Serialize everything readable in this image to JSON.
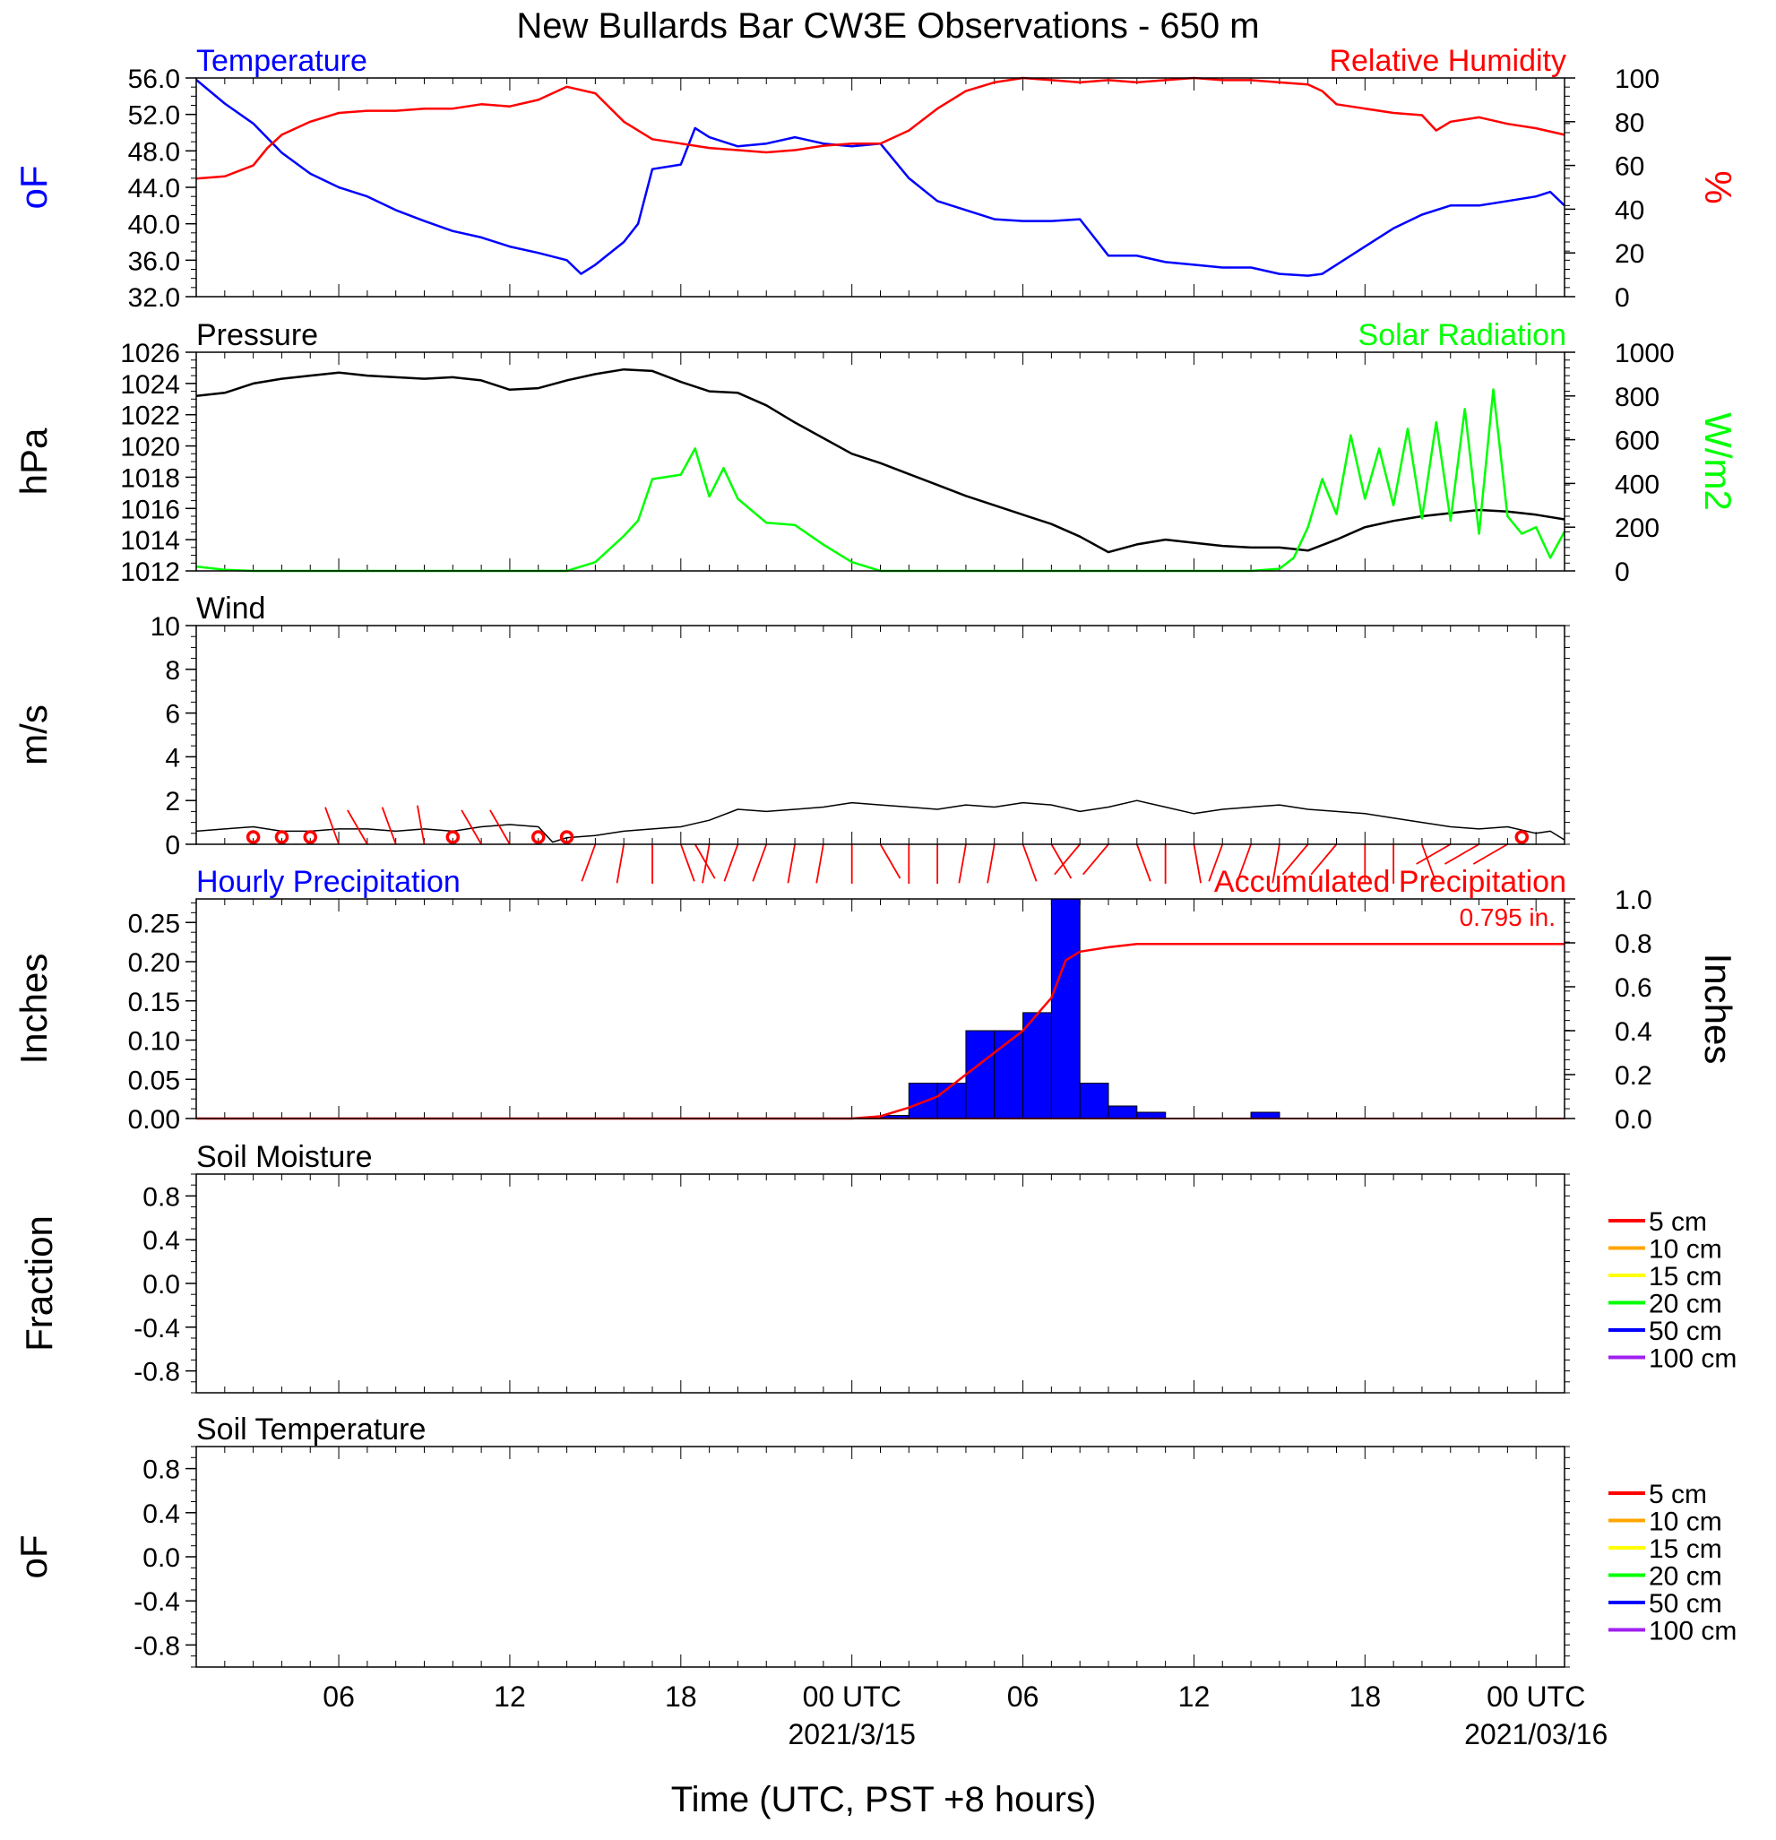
{
  "title": "New Bullards Bar CW3E Observations - 650 m",
  "x_axis": {
    "label": "Time (UTC, PST +8 hours)",
    "ticks": [
      {
        "hour": 6,
        "label": "06"
      },
      {
        "hour": 12,
        "label": "12"
      },
      {
        "hour": 18,
        "label": "18"
      },
      {
        "hour": 24,
        "label": "00 UTC",
        "date": "2021/3/15"
      },
      {
        "hour": 30,
        "label": "06"
      },
      {
        "hour": 36,
        "label": "12"
      },
      {
        "hour": 42,
        "label": "18"
      },
      {
        "hour": 48,
        "label": "00 UTC",
        "date": "2021/03/16"
      }
    ],
    "range_hours": [
      1,
      49
    ]
  },
  "chart_data": [
    {
      "type": "line",
      "panel": "temperature-humidity",
      "left_title": "Temperature",
      "right_title": "Relative Humidity",
      "ylabel_left": "oF",
      "ylabel_right": "%",
      "ylim_left": [
        32,
        56
      ],
      "ylim_right": [
        0,
        100
      ],
      "yticks_left": [
        "32.0",
        "36.0",
        "40.0",
        "44.0",
        "48.0",
        "52.0",
        "56.0"
      ],
      "yticks_right": [
        "0",
        "20",
        "40",
        "60",
        "80",
        "100"
      ],
      "colors": {
        "left": "#0000ff",
        "right": "#ff0000"
      },
      "series": [
        {
          "name": "Temperature",
          "axis": "left",
          "color": "#0000ff",
          "x": [
            1,
            2,
            3,
            4,
            5,
            6,
            7,
            8,
            9,
            10,
            11,
            12,
            13,
            14,
            14.5,
            15,
            16,
            16.5,
            17,
            18,
            18.5,
            19,
            20,
            21,
            22,
            23,
            24,
            25,
            26,
            27,
            28,
            29,
            30,
            31,
            32,
            32.5,
            33,
            34,
            35,
            36,
            37,
            38,
            39,
            40,
            40.5,
            41,
            42,
            43,
            44,
            45,
            46,
            47,
            48,
            48.5,
            49
          ],
          "values": [
            55.8,
            53.2,
            51,
            47.8,
            45.5,
            44,
            43,
            41.5,
            40.3,
            39.2,
            38.5,
            37.5,
            36.8,
            36,
            34.5,
            35.5,
            38,
            40,
            46,
            46.5,
            50.5,
            49.5,
            48.5,
            48.8,
            49.5,
            48.8,
            48.5,
            48.8,
            45,
            42.5,
            41.5,
            40.5,
            40.3,
            40.3,
            40.5,
            38.5,
            36.5,
            36.5,
            35.8,
            35.5,
            35.2,
            35.2,
            34.5,
            34.3,
            34.5,
            35.5,
            37.5,
            39.5,
            41,
            42,
            42,
            42.5,
            43,
            43.5,
            42
          ]
        },
        {
          "name": "Relative Humidity",
          "axis": "right",
          "color": "#ff0000",
          "x": [
            1,
            2,
            3,
            3.5,
            4,
            5,
            6,
            7,
            8,
            9,
            10,
            11,
            12,
            13,
            14,
            15,
            16,
            17,
            18,
            19,
            20,
            21,
            22,
            23,
            24,
            25,
            26,
            27,
            28,
            29,
            30,
            31,
            32,
            33,
            34,
            35,
            36,
            37,
            38,
            39,
            40,
            40.5,
            41,
            42,
            43,
            44,
            44.5,
            45,
            46,
            47,
            48,
            49
          ],
          "values": [
            54,
            55,
            60,
            68,
            74,
            80,
            84,
            85,
            85,
            86,
            86,
            88,
            87,
            90,
            96,
            93,
            80,
            72,
            70,
            68,
            67,
            66,
            67,
            69,
            70,
            70,
            76,
            86,
            94,
            98,
            100,
            99,
            98,
            99,
            98,
            99,
            100,
            99,
            99,
            98,
            97,
            94,
            88,
            86,
            84,
            83,
            76,
            80,
            82,
            79,
            77,
            74
          ]
        }
      ]
    },
    {
      "type": "line",
      "panel": "pressure-solar",
      "left_title": "Pressure",
      "right_title": "Solar Radiation",
      "ylabel_left": "hPa",
      "ylabel_right": "W/m2",
      "ylim_left": [
        1012,
        1026
      ],
      "ylim_right": [
        0,
        1000
      ],
      "yticks_left": [
        "1012",
        "1014",
        "1016",
        "1018",
        "1020",
        "1022",
        "1024",
        "1026"
      ],
      "yticks_right": [
        "0",
        "200",
        "400",
        "600",
        "800",
        "1000"
      ],
      "colors": {
        "left": "#000000",
        "right": "#00ff00"
      },
      "series": [
        {
          "name": "Pressure",
          "axis": "left",
          "color": "#000000",
          "x": [
            1,
            2,
            3,
            4,
            5,
            6,
            7,
            8,
            9,
            10,
            11,
            12,
            13,
            14,
            15,
            16,
            17,
            18,
            19,
            20,
            21,
            22,
            23,
            24,
            25,
            26,
            27,
            28,
            29,
            30,
            31,
            32,
            33,
            34,
            35,
            36,
            37,
            38,
            39,
            40,
            41,
            42,
            43,
            44,
            45,
            46,
            47,
            48,
            49
          ],
          "values": [
            1023.2,
            1023.4,
            1024,
            1024.3,
            1024.5,
            1024.7,
            1024.5,
            1024.4,
            1024.3,
            1024.4,
            1024.2,
            1023.6,
            1023.7,
            1024.2,
            1024.6,
            1024.9,
            1024.8,
            1024.1,
            1023.5,
            1023.4,
            1022.6,
            1021.5,
            1020.5,
            1019.5,
            1018.9,
            1018.2,
            1017.5,
            1016.8,
            1016.2,
            1015.6,
            1015,
            1014.2,
            1013.2,
            1013.7,
            1014,
            1013.8,
            1013.6,
            1013.5,
            1013.5,
            1013.3,
            1014,
            1014.8,
            1015.2,
            1015.5,
            1015.7,
            1015.9,
            1015.8,
            1015.6,
            1015.3
          ]
        },
        {
          "name": "Solar Radiation",
          "axis": "right",
          "color": "#00ff00",
          "x": [
            1,
            2,
            3,
            4,
            5,
            6,
            7,
            8,
            9,
            10,
            11,
            12,
            13,
            14,
            15,
            16,
            16.5,
            17,
            17.5,
            18,
            18.5,
            19,
            19.5,
            20,
            21,
            22,
            23,
            24,
            25,
            26,
            27,
            28,
            29,
            30,
            31,
            32,
            33,
            34,
            35,
            36,
            37,
            38,
            39,
            39.5,
            40,
            40.5,
            41,
            41.5,
            42,
            42.5,
            43,
            43.5,
            44,
            44.5,
            45,
            45.5,
            46,
            46.5,
            47,
            47.5,
            48,
            48.5,
            49
          ],
          "values": [
            20,
            5,
            0,
            0,
            0,
            0,
            0,
            0,
            0,
            0,
            0,
            0,
            0,
            0,
            40,
            160,
            230,
            420,
            430,
            440,
            560,
            340,
            470,
            330,
            220,
            210,
            120,
            40,
            0,
            0,
            0,
            0,
            0,
            0,
            0,
            0,
            0,
            0,
            0,
            0,
            0,
            0,
            10,
            60,
            200,
            420,
            260,
            620,
            330,
            560,
            300,
            650,
            240,
            680,
            230,
            740,
            170,
            830,
            250,
            170,
            200,
            60,
            180
          ]
        }
      ]
    },
    {
      "type": "line",
      "panel": "wind",
      "left_title": "Wind",
      "ylabel_left": "m/s",
      "ylim_left": [
        0,
        10
      ],
      "yticks_left": [
        "0",
        "2",
        "4",
        "6",
        "8",
        "10"
      ],
      "colors": {
        "line": "#000000",
        "barbs": "#ff0000"
      },
      "series": [
        {
          "name": "Wind",
          "axis": "left",
          "color": "#000000",
          "x": [
            1,
            2,
            3,
            4,
            5,
            6,
            7,
            8,
            9,
            10,
            11,
            12,
            13,
            13.5,
            14,
            15,
            16,
            17,
            18,
            19,
            20,
            21,
            22,
            23,
            24,
            25,
            26,
            27,
            28,
            29,
            30,
            31,
            32,
            33,
            34,
            35,
            36,
            37,
            38,
            39,
            40,
            41,
            42,
            43,
            44,
            45,
            46,
            47,
            48,
            48.5,
            49
          ],
          "values": [
            0.6,
            0.7,
            0.8,
            0.6,
            0.6,
            0.7,
            0.7,
            0.6,
            0.7,
            0.6,
            0.8,
            0.9,
            0.8,
            0.1,
            0.3,
            0.4,
            0.6,
            0.7,
            0.8,
            1.1,
            1.6,
            1.5,
            1.6,
            1.7,
            1.9,
            1.8,
            1.7,
            1.6,
            1.8,
            1.7,
            1.9,
            1.8,
            1.5,
            1.7,
            2.0,
            1.7,
            1.4,
            1.6,
            1.7,
            1.8,
            1.6,
            1.5,
            1.4,
            1.2,
            1.0,
            0.8,
            0.7,
            0.8,
            0.5,
            0.6,
            0.2
          ]
        },
        {
          "name": "wind-barbs",
          "x": [
            3,
            4,
            5,
            6,
            7,
            8,
            9,
            10,
            11,
            12,
            13,
            14,
            15,
            16,
            17,
            18,
            18.5,
            19,
            20,
            21,
            22,
            23,
            24,
            25,
            26,
            27,
            28,
            29,
            30,
            31,
            32,
            33,
            34,
            35,
            36,
            37,
            38,
            39,
            40,
            41,
            42,
            43,
            44,
            45,
            46,
            47,
            47.5
          ],
          "direction_deg": [
            0,
            0,
            0,
            340,
            330,
            340,
            350,
            0,
            330,
            330,
            0,
            0,
            200,
            190,
            180,
            160,
            150,
            190,
            200,
            200,
            190,
            190,
            180,
            150,
            180,
            180,
            190,
            190,
            160,
            150,
            220,
            220,
            160,
            180,
            170,
            200,
            200,
            190,
            220,
            220,
            180,
            180,
            160,
            240,
            240,
            240,
            0
          ],
          "calm": [
            true,
            true,
            true,
            false,
            false,
            false,
            false,
            true,
            false,
            false,
            true,
            true,
            false,
            false,
            false,
            false,
            false,
            false,
            false,
            false,
            false,
            false,
            false,
            false,
            false,
            false,
            false,
            false,
            false,
            false,
            false,
            false,
            false,
            false,
            false,
            false,
            false,
            false,
            false,
            false,
            false,
            false,
            false,
            false,
            false,
            false,
            true
          ]
        }
      ]
    },
    {
      "type": "bar",
      "panel": "precipitation",
      "left_title": "Hourly Precipitation",
      "right_title": "Accumulated Precipitation",
      "ylabel_left": "Inches",
      "ylabel_right": "Inches",
      "ylim_left": [
        0,
        0.28
      ],
      "ylim_right": [
        0,
        1.0
      ],
      "yticks_left": [
        "0.00",
        "0.05",
        "0.10",
        "0.15",
        "0.20",
        "0.25"
      ],
      "yticks_right": [
        "0.0",
        "0.2",
        "0.4",
        "0.6",
        "0.8",
        "1.0"
      ],
      "annotation": "0.795 in.",
      "colors": {
        "bars": "#0000ff",
        "accum": "#ff0000"
      },
      "series": [
        {
          "name": "Hourly Precipitation",
          "axis": "left",
          "color": "#0000ff",
          "x": [
            25,
            26,
            27,
            28,
            29,
            30,
            31,
            32,
            33,
            34,
            35,
            38
          ],
          "values": [
            0.004,
            0.045,
            0.045,
            0.112,
            0.112,
            0.135,
            0.28,
            0.045,
            0.016,
            0.008,
            0.0,
            0.008
          ]
        },
        {
          "name": "Accumulated Precipitation",
          "axis": "right",
          "color": "#ff0000",
          "x": [
            1,
            24,
            25,
            26,
            27,
            28,
            29,
            30,
            31,
            31.5,
            32,
            33,
            34,
            35,
            38,
            49
          ],
          "values": [
            0,
            0,
            0.01,
            0.05,
            0.1,
            0.2,
            0.3,
            0.4,
            0.55,
            0.72,
            0.76,
            0.78,
            0.795,
            0.795,
            0.795,
            0.795
          ]
        }
      ]
    },
    {
      "type": "line",
      "panel": "soil-moisture",
      "left_title": "Soil Moisture",
      "ylabel_left": "Fraction",
      "ylim_left": [
        -1.0,
        1.0
      ],
      "yticks_left": [
        "-0.8",
        "-0.4",
        "0.0",
        "0.4",
        "0.8"
      ],
      "series": [],
      "legend": [
        {
          "label": "5 cm",
          "color": "#ff0000"
        },
        {
          "label": "10 cm",
          "color": "#ffa500"
        },
        {
          "label": "15 cm",
          "color": "#ffff00"
        },
        {
          "label": "20 cm",
          "color": "#00ff00"
        },
        {
          "label": "50 cm",
          "color": "#0000ff"
        },
        {
          "label": "100 cm",
          "color": "#a020f0"
        }
      ]
    },
    {
      "type": "line",
      "panel": "soil-temperature",
      "left_title": "Soil Temperature",
      "ylabel_left": "oF",
      "ylim_left": [
        -1.0,
        1.0
      ],
      "yticks_left": [
        "-0.8",
        "-0.4",
        "0.0",
        "0.4",
        "0.8"
      ],
      "series": [],
      "legend": [
        {
          "label": "5 cm",
          "color": "#ff0000"
        },
        {
          "label": "10 cm",
          "color": "#ffa500"
        },
        {
          "label": "15 cm",
          "color": "#ffff00"
        },
        {
          "label": "20 cm",
          "color": "#00ff00"
        },
        {
          "label": "50 cm",
          "color": "#0000ff"
        },
        {
          "label": "100 cm",
          "color": "#a020f0"
        }
      ]
    }
  ]
}
